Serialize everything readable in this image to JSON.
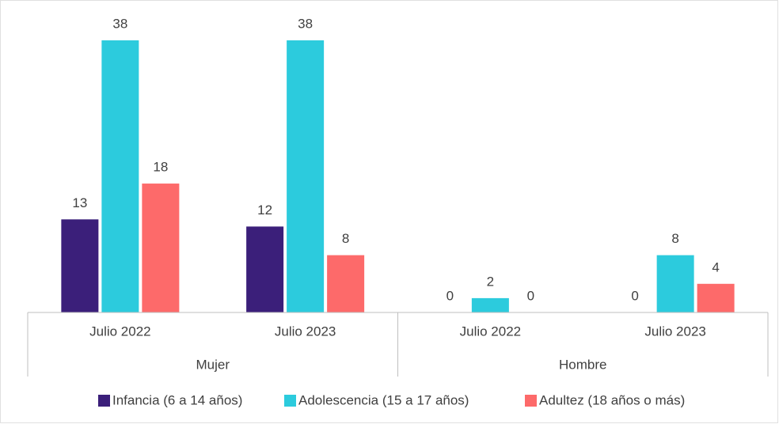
{
  "chart_data": {
    "type": "bar",
    "categories": [
      "Julio 2022",
      "Julio 2023",
      "Julio 2022",
      "Julio 2023"
    ],
    "groups": [
      "Mujer",
      "Hombre"
    ],
    "series": [
      {
        "name": "Infancia (6 a 14 años)",
        "color": "#3b1f7a",
        "values": [
          13,
          12,
          0,
          0
        ]
      },
      {
        "name": "Adolescencia (15 a 17 años)",
        "color": "#2ccbdd",
        "values": [
          38,
          38,
          2,
          8
        ]
      },
      {
        "name": "Adultez (18 años o más)",
        "color": "#fd6a6a",
        "values": [
          18,
          8,
          0,
          4
        ]
      }
    ],
    "legend": "bottom"
  }
}
